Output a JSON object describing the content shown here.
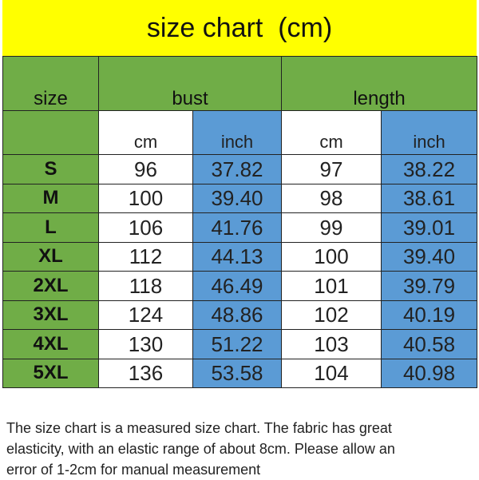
{
  "title": "size chart  (cm)",
  "colors": {
    "title_bg": "#ffff00",
    "header_bg": "#70ad47",
    "inch_bg": "#5b9bd5",
    "cm_bg": "#ffffff"
  },
  "headers": {
    "size": "size",
    "bust": "bust",
    "length": "length",
    "cm": "cm",
    "inch": "inch"
  },
  "rows": [
    {
      "size": "S",
      "bust_cm": "96",
      "bust_inch": "37.82",
      "length_cm": "97",
      "length_inch": "38.22"
    },
    {
      "size": "M",
      "bust_cm": "100",
      "bust_inch": "39.40",
      "length_cm": "98",
      "length_inch": "38.61"
    },
    {
      "size": "L",
      "bust_cm": "106",
      "bust_inch": "41.76",
      "length_cm": "99",
      "length_inch": "39.01"
    },
    {
      "size": "XL",
      "bust_cm": "112",
      "bust_inch": "44.13",
      "length_cm": "100",
      "length_inch": "39.40"
    },
    {
      "size": "2XL",
      "bust_cm": "118",
      "bust_inch": "46.49",
      "length_cm": "101",
      "length_inch": "39.79"
    },
    {
      "size": "3XL",
      "bust_cm": "124",
      "bust_inch": "48.86",
      "length_cm": "102",
      "length_inch": "40.19"
    },
    {
      "size": "4XL",
      "bust_cm": "130",
      "bust_inch": "51.22",
      "length_cm": "103",
      "length_inch": "40.58"
    },
    {
      "size": "5XL",
      "bust_cm": "136",
      "bust_inch": "53.58",
      "length_cm": "104",
      "length_inch": "40.98"
    }
  ],
  "note": "The size chart is a measured size chart. The fabric has great\n elasticity, with an elastic range of about 8cm. Please allow an\nerror of 1-2cm for manual measurement"
}
